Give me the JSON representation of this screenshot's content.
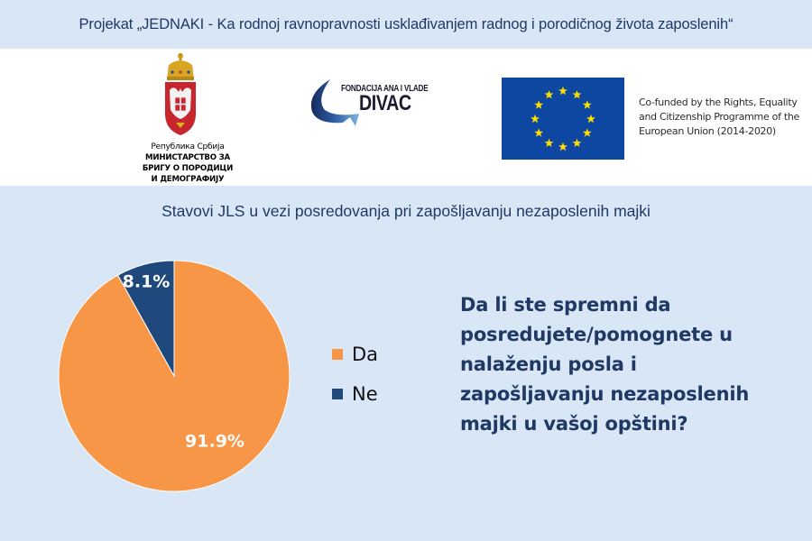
{
  "header": {
    "title": "Projekat „JEDNAKI - Ka rodnoj ravnopravnosti usklađivanjem radnog i porodičnog života zaposlenih“"
  },
  "logos": {
    "serbia": {
      "icon": "serbian-coat-of-arms-icon",
      "lines": [
        "Република Србија",
        "МИНИСТАРСТВО ЗА",
        "БРИГУ О ПОРОДИЦИ",
        "И ДЕМОГРАФИЈУ"
      ]
    },
    "divac": {
      "icon": "divac-foundation-swoosh-icon",
      "small": "FONDACIJA ANA I VLADE",
      "big": "DIVAC"
    },
    "eu": {
      "icon": "eu-flag-icon",
      "lines": [
        "Co-funded by the Rights, Equality",
        "and Citizenship Programme of the",
        "European Union (2014-2020)"
      ]
    }
  },
  "colors": {
    "background": "#d9e6f5",
    "title_text": "#1f3864",
    "da": "#f79646",
    "ne": "#1f497d",
    "eu_blue": "#0d47a1",
    "eu_star": "#ffdd00"
  },
  "chart_data": {
    "type": "pie",
    "title": "Stavovi JLS u vezi posredovanja pri zapošljavanju nezaposlenih majki",
    "categories": [
      "Da",
      "Ne"
    ],
    "values": [
      91.9,
      8.1
    ],
    "labels": [
      "91.9%",
      "8.1%"
    ],
    "colors": [
      "#f79646",
      "#1f497d"
    ],
    "legend_position": "right",
    "start_angle_deg": 0,
    "direction": "clockwise"
  },
  "legend": {
    "items": [
      {
        "label": "Da",
        "color": "#f79646"
      },
      {
        "label": "Ne",
        "color": "#1f497d"
      }
    ]
  },
  "question": {
    "lines": [
      "Da li ste spremni da",
      "posredujete/pomognete u",
      "nalaženju posla i",
      "zapošljavanju nezaposlenih",
      "majki u vašoj opštini?"
    ]
  }
}
